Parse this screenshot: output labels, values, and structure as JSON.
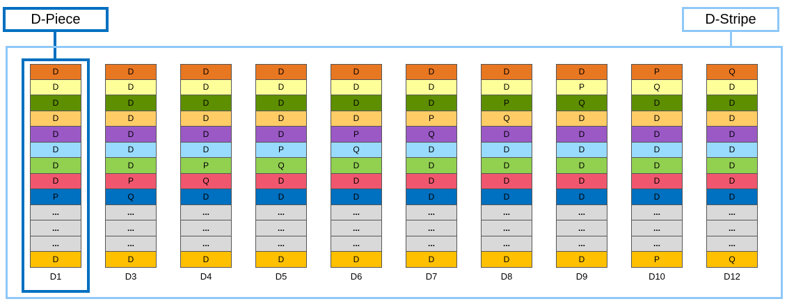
{
  "labels": {
    "piece": "D-Piece",
    "stripe": "D-Stripe"
  },
  "colors": {
    "piece_border": "#0070C0",
    "stripe_border": "#8EC8F8",
    "rows": [
      "#E87722",
      "#FFFF99",
      "#5E8F00",
      "#FFCC66",
      "#9B59C6",
      "#99DBFF",
      "#92D050",
      "#F0576E",
      "#0070C0",
      "#D9D9D9",
      "#D9D9D9",
      "#D9D9D9",
      "#FFC000"
    ]
  },
  "columns": [
    {
      "label": "D1",
      "cells": [
        "D",
        "D",
        "D",
        "D",
        "D",
        "D",
        "D",
        "D",
        "P",
        "...",
        "...",
        "...",
        "D"
      ]
    },
    {
      "label": "D3",
      "cells": [
        "D",
        "D",
        "D",
        "D",
        "D",
        "D",
        "D",
        "P",
        "Q",
        "...",
        "...",
        "...",
        "D"
      ]
    },
    {
      "label": "D4",
      "cells": [
        "D",
        "D",
        "D",
        "D",
        "D",
        "D",
        "P",
        "Q",
        "D",
        "...",
        "...",
        "...",
        "D"
      ]
    },
    {
      "label": "D5",
      "cells": [
        "D",
        "D",
        "D",
        "D",
        "D",
        "P",
        "Q",
        "D",
        "D",
        "...",
        "...",
        "...",
        "D"
      ]
    },
    {
      "label": "D6",
      "cells": [
        "D",
        "D",
        "D",
        "D",
        "P",
        "Q",
        "D",
        "D",
        "D",
        "...",
        "...",
        "...",
        "D"
      ]
    },
    {
      "label": "D7",
      "cells": [
        "D",
        "D",
        "D",
        "P",
        "Q",
        "D",
        "D",
        "D",
        "D",
        "...",
        "...",
        "...",
        "D"
      ]
    },
    {
      "label": "D8",
      "cells": [
        "D",
        "D",
        "P",
        "Q",
        "D",
        "D",
        "D",
        "D",
        "D",
        "...",
        "...",
        "...",
        "D"
      ]
    },
    {
      "label": "D9",
      "cells": [
        "D",
        "P",
        "Q",
        "D",
        "D",
        "D",
        "D",
        "D",
        "D",
        "...",
        "...",
        "...",
        "D"
      ]
    },
    {
      "label": "D10",
      "cells": [
        "P",
        "Q",
        "D",
        "D",
        "D",
        "D",
        "D",
        "D",
        "D",
        "...",
        "...",
        "...",
        "P"
      ]
    },
    {
      "label": "D12",
      "cells": [
        "Q",
        "D",
        "D",
        "D",
        "D",
        "D",
        "D",
        "D",
        "D",
        "...",
        "...",
        "...",
        "Q"
      ]
    }
  ]
}
